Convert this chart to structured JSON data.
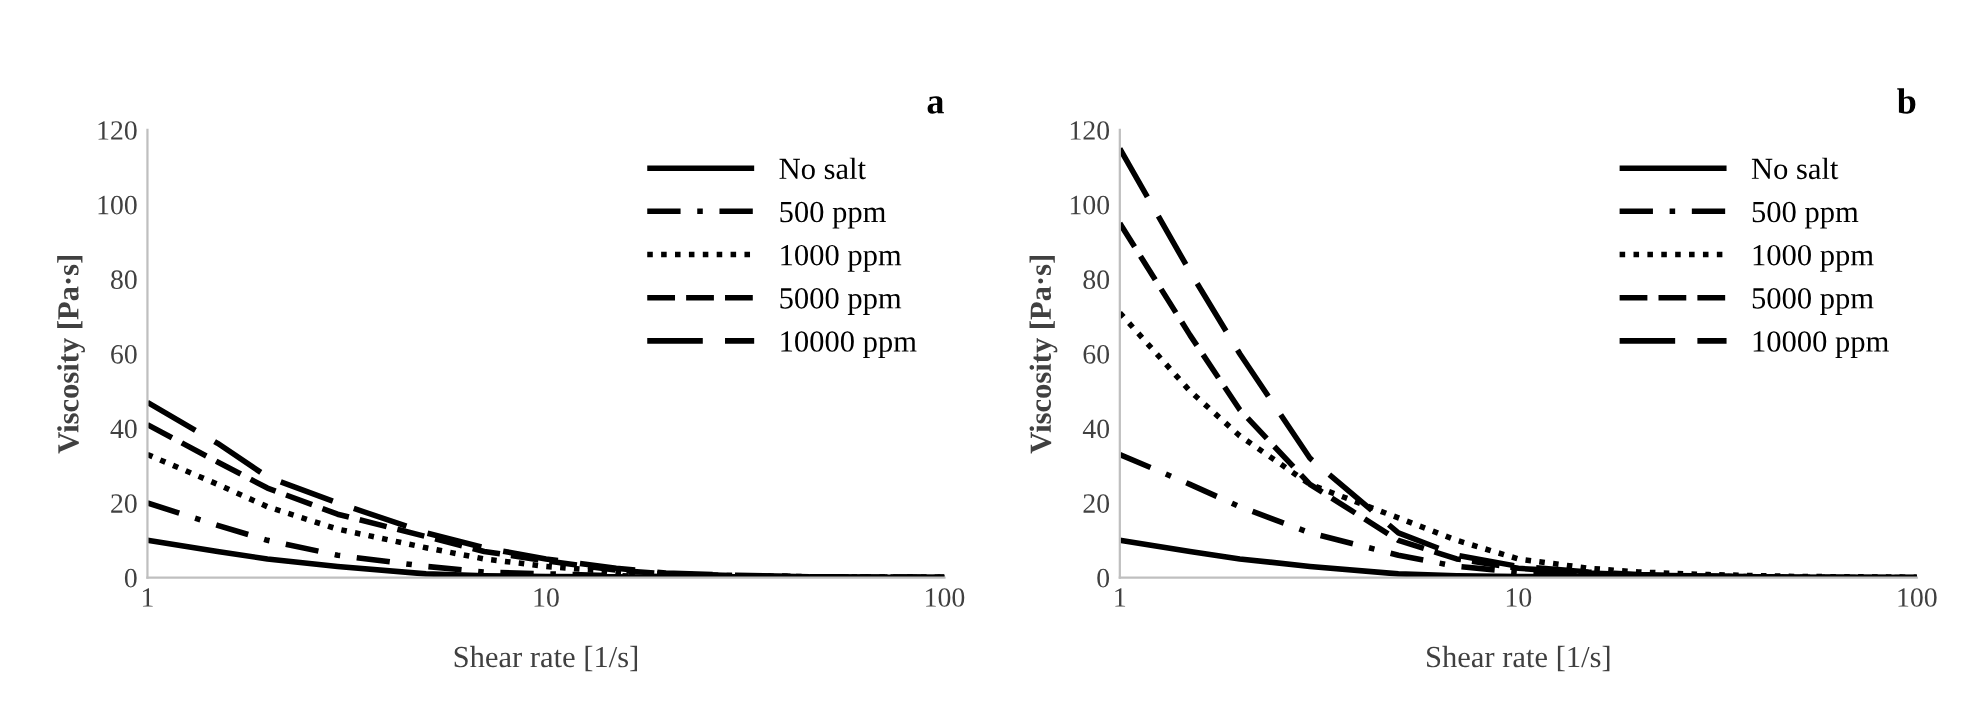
{
  "chart_data": [
    {
      "type": "line",
      "title": "a",
      "xlabel": "Shear rate [1/s]",
      "ylabel": "Viscosity [Pa·s]",
      "log": "x",
      "xlim": [
        1,
        100
      ],
      "xticks": [
        1,
        10,
        100
      ],
      "ylim": [
        0,
        120
      ],
      "yticks": [
        0,
        20,
        40,
        60,
        80,
        100,
        120
      ],
      "grid": false,
      "legend": "top right",
      "x": [
        1,
        1.5,
        2,
        3,
        5,
        7,
        10,
        15,
        20,
        30,
        50,
        100
      ],
      "series": [
        {
          "name": "No salt",
          "color": "#000000",
          "line_style": "solid",
          "values": [
            10,
            7,
            5,
            3,
            1,
            0.5,
            0.3,
            0.2,
            0.1,
            0.1,
            0,
            0
          ]
        },
        {
          "name": "500 ppm",
          "color": "#000000",
          "line_style": "dashdot",
          "values": [
            20,
            14,
            10,
            6,
            3,
            1.5,
            1,
            0.5,
            0.3,
            0.2,
            0.1,
            0
          ]
        },
        {
          "name": "1000 ppm",
          "color": "#000000",
          "line_style": "dotted",
          "values": [
            33,
            25,
            19,
            13,
            8,
            5,
            3,
            1.5,
            1,
            0.5,
            0.2,
            0.1
          ]
        },
        {
          "name": "5000 ppm",
          "color": "#000000",
          "line_style": "dashed",
          "values": [
            41,
            31,
            24,
            17,
            11,
            7,
            4.5,
            2,
            1,
            0.5,
            0.2,
            0.1
          ]
        },
        {
          "name": "10000 ppm",
          "color": "#000000",
          "line_style": "longdash",
          "values": [
            47,
            36,
            27,
            20,
            12,
            8,
            5,
            2.5,
            1.2,
            0.6,
            0.2,
            0.1
          ]
        }
      ]
    },
    {
      "type": "line",
      "title": "b",
      "xlabel": "Shear rate [1/s]",
      "ylabel": "Viscosity [Pa·s]",
      "log": "x",
      "xlim": [
        1,
        100
      ],
      "xticks": [
        1,
        10,
        100
      ],
      "ylim": [
        0,
        120
      ],
      "yticks": [
        0,
        20,
        40,
        60,
        80,
        100,
        120
      ],
      "grid": false,
      "legend": "top right",
      "x": [
        1,
        1.5,
        2,
        3,
        5,
        7,
        10,
        15,
        20,
        30,
        50,
        100
      ],
      "series": [
        {
          "name": "No salt",
          "color": "#000000",
          "line_style": "solid",
          "values": [
            10,
            7,
            5,
            3,
            1,
            0.5,
            0.3,
            0.2,
            0.1,
            0.1,
            0,
            0
          ]
        },
        {
          "name": "500 ppm",
          "color": "#000000",
          "line_style": "dashdot",
          "values": [
            33,
            25,
            19,
            12,
            6,
            3,
            1.5,
            1,
            0.5,
            0.3,
            0.1,
            0
          ]
        },
        {
          "name": "1000 ppm",
          "color": "#000000",
          "line_style": "dotted",
          "values": [
            71,
            50,
            38,
            25,
            16,
            10,
            5,
            2.5,
            1.5,
            0.8,
            0.3,
            0.1
          ]
        },
        {
          "name": "5000 ppm",
          "color": "#000000",
          "line_style": "dashed",
          "values": [
            95,
            65,
            45,
            25,
            10,
            5,
            2.5,
            1.2,
            0.7,
            0.4,
            0.1,
            0
          ]
        },
        {
          "name": "10000 ppm",
          "color": "#000000",
          "line_style": "longdash",
          "values": [
            115,
            82,
            60,
            32,
            12,
            6,
            3,
            1.5,
            0.8,
            0.4,
            0.1,
            0
          ]
        }
      ]
    }
  ]
}
